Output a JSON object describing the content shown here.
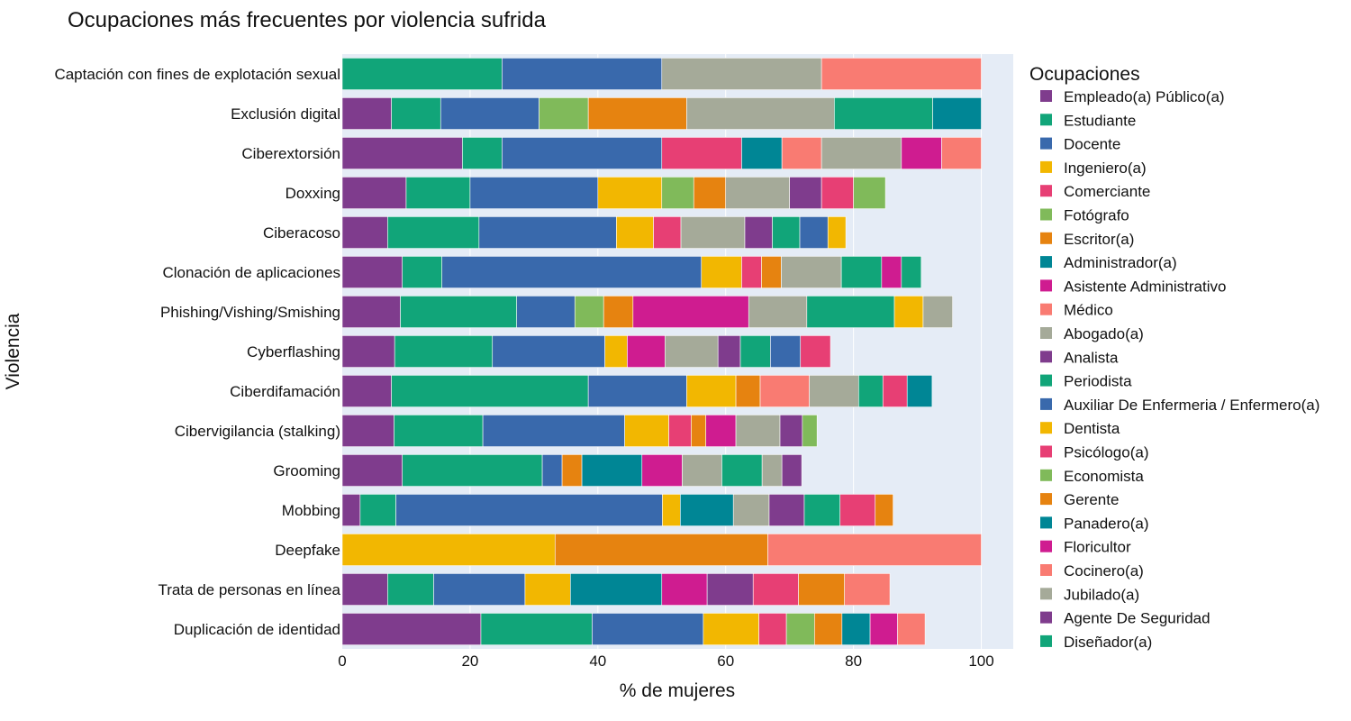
{
  "chart_data": {
    "type": "bar",
    "orientation": "horizontal",
    "stacked": true,
    "title": "Ocupaciones más frecuentes por violencia sufrida",
    "xlabel": "% de mujeres",
    "ylabel": "Violencia",
    "xlim": [
      0,
      105
    ],
    "xticks": [
      0,
      20,
      40,
      60,
      80,
      100
    ],
    "grid": true,
    "legend_title": "Ocupaciones",
    "legend_position": "right",
    "categories": [
      "Captación con fines de explotación sexual",
      "Exclusión digital",
      "Ciberextorsión",
      "Doxxing",
      "Ciberacoso",
      "Clonación de aplicaciones",
      "Phishing/Vishing/Smishing",
      "Cyberflashing",
      "Ciberdifamación",
      "Cibervigilancia (stalking)",
      "Grooming",
      "Mobbing",
      "Deepfake",
      "Trata de personas en línea",
      "Duplicación de identidad"
    ],
    "legend_entries": [
      {
        "name": "Empleado(a) Público(a)",
        "color": "#7f3c8d"
      },
      {
        "name": "Estudiante",
        "color": "#11a579"
      },
      {
        "name": "Docente",
        "color": "#3969ac"
      },
      {
        "name": "Ingeniero(a)",
        "color": "#f2b701"
      },
      {
        "name": "Comerciante",
        "color": "#e73f74"
      },
      {
        "name": "Fotógrafo",
        "color": "#80ba5a"
      },
      {
        "name": "Escritor(a)",
        "color": "#e68310"
      },
      {
        "name": "Administrador(a)",
        "color": "#008695"
      },
      {
        "name": "Asistente Administrativo",
        "color": "#cf1c90"
      },
      {
        "name": "Médico",
        "color": "#f97b72"
      },
      {
        "name": "Abogado(a)",
        "color": "#a5aa99"
      },
      {
        "name": "Analista",
        "color": "#7f3c8d"
      },
      {
        "name": "Periodista",
        "color": "#11a579"
      },
      {
        "name": "Auxiliar De Enfermeria / Enfermero(a)",
        "color": "#3969ac"
      },
      {
        "name": "Dentista",
        "color": "#f2b701"
      },
      {
        "name": "Psicólogo(a)",
        "color": "#e73f74"
      },
      {
        "name": "Economista",
        "color": "#80ba5a"
      },
      {
        "name": "Gerente",
        "color": "#e68310"
      },
      {
        "name": "Panadero(a)",
        "color": "#008695"
      },
      {
        "name": "Floricultor",
        "color": "#cf1c90"
      },
      {
        "name": "Cocinero(a)",
        "color": "#f97b72"
      },
      {
        "name": "Jubilado(a)",
        "color": "#a5aa99"
      },
      {
        "name": "Agente De Seguridad",
        "color": "#7f3c8d"
      },
      {
        "name": "Diseñador(a)",
        "color": "#11a579"
      }
    ],
    "bars": [
      {
        "category": "Captación con fines de explotación sexual",
        "segments": [
          {
            "color": "#11a579",
            "value": 25.0
          },
          {
            "color": "#3969ac",
            "value": 25.0
          },
          {
            "color": "#a5aa99",
            "value": 25.0
          },
          {
            "color": "#f97b72",
            "value": 25.0
          }
        ]
      },
      {
        "category": "Exclusión digital",
        "segments": [
          {
            "color": "#7f3c8d",
            "value": 7.7
          },
          {
            "color": "#11a579",
            "value": 7.7
          },
          {
            "color": "#3969ac",
            "value": 15.4
          },
          {
            "color": "#80ba5a",
            "value": 7.7
          },
          {
            "color": "#e68310",
            "value": 15.4
          },
          {
            "color": "#a5aa99",
            "value": 23.1
          },
          {
            "color": "#11a579",
            "value": 15.4
          },
          {
            "color": "#008695",
            "value": 7.6
          }
        ]
      },
      {
        "category": "Ciberextorsión",
        "segments": [
          {
            "color": "#7f3c8d",
            "value": 18.8
          },
          {
            "color": "#11a579",
            "value": 6.2
          },
          {
            "color": "#3969ac",
            "value": 25.0
          },
          {
            "color": "#e73f74",
            "value": 12.5
          },
          {
            "color": "#008695",
            "value": 6.3
          },
          {
            "color": "#f97b72",
            "value": 6.2
          },
          {
            "color": "#a5aa99",
            "value": 12.5
          },
          {
            "color": "#cf1c90",
            "value": 6.3
          },
          {
            "color": "#f97b72",
            "value": 6.2
          }
        ]
      },
      {
        "category": "Doxxing",
        "segments": [
          {
            "color": "#7f3c8d",
            "value": 10.0
          },
          {
            "color": "#11a579",
            "value": 10.0
          },
          {
            "color": "#3969ac",
            "value": 20.0
          },
          {
            "color": "#f2b701",
            "value": 10.0
          },
          {
            "color": "#80ba5a",
            "value": 5.0
          },
          {
            "color": "#e68310",
            "value": 5.0
          },
          {
            "color": "#a5aa99",
            "value": 10.0
          },
          {
            "color": "#7f3c8d",
            "value": 5.0
          },
          {
            "color": "#e73f74",
            "value": 5.0
          },
          {
            "color": "#80ba5a",
            "value": 5.0
          }
        ]
      },
      {
        "category": "Ciberacoso",
        "segments": [
          {
            "color": "#7f3c8d",
            "value": 7.1
          },
          {
            "color": "#11a579",
            "value": 14.3
          },
          {
            "color": "#3969ac",
            "value": 21.5
          },
          {
            "color": "#f2b701",
            "value": 5.8
          },
          {
            "color": "#e73f74",
            "value": 4.3
          },
          {
            "color": "#a5aa99",
            "value": 10.0
          },
          {
            "color": "#7f3c8d",
            "value": 4.3
          },
          {
            "color": "#11a579",
            "value": 4.3
          },
          {
            "color": "#3969ac",
            "value": 4.4
          },
          {
            "color": "#f2b701",
            "value": 2.8
          }
        ]
      },
      {
        "category": "Clonación de aplicaciones",
        "segments": [
          {
            "color": "#7f3c8d",
            "value": 9.4
          },
          {
            "color": "#11a579",
            "value": 6.2
          },
          {
            "color": "#3969ac",
            "value": 40.6
          },
          {
            "color": "#f2b701",
            "value": 6.3
          },
          {
            "color": "#e73f74",
            "value": 3.1
          },
          {
            "color": "#e68310",
            "value": 3.1
          },
          {
            "color": "#a5aa99",
            "value": 9.4
          },
          {
            "color": "#11a579",
            "value": 6.3
          },
          {
            "color": "#cf1c90",
            "value": 3.1
          },
          {
            "color": "#11a579",
            "value": 3.1
          }
        ]
      },
      {
        "category": "Phishing/Vishing/Smishing",
        "segments": [
          {
            "color": "#7f3c8d",
            "value": 9.1
          },
          {
            "color": "#11a579",
            "value": 18.2
          },
          {
            "color": "#3969ac",
            "value": 9.1
          },
          {
            "color": "#80ba5a",
            "value": 4.5
          },
          {
            "color": "#e68310",
            "value": 4.6
          },
          {
            "color": "#cf1c90",
            "value": 18.1
          },
          {
            "color": "#a5aa99",
            "value": 9.1
          },
          {
            "color": "#11a579",
            "value": 13.7
          },
          {
            "color": "#f2b701",
            "value": 4.5
          },
          {
            "color": "#a5aa99",
            "value": 4.6
          }
        ]
      },
      {
        "category": "Cyberflashing",
        "segments": [
          {
            "color": "#7f3c8d",
            "value": 8.2
          },
          {
            "color": "#11a579",
            "value": 15.3
          },
          {
            "color": "#3969ac",
            "value": 17.6
          },
          {
            "color": "#f2b701",
            "value": 3.5
          },
          {
            "color": "#cf1c90",
            "value": 5.9
          },
          {
            "color": "#a5aa99",
            "value": 8.3
          },
          {
            "color": "#7f3c8d",
            "value": 3.5
          },
          {
            "color": "#11a579",
            "value": 4.7
          },
          {
            "color": "#3969ac",
            "value": 4.7
          },
          {
            "color": "#e73f74",
            "value": 4.7
          }
        ]
      },
      {
        "category": "Ciberdifamación",
        "segments": [
          {
            "color": "#7f3c8d",
            "value": 7.7
          },
          {
            "color": "#11a579",
            "value": 30.8
          },
          {
            "color": "#3969ac",
            "value": 15.4
          },
          {
            "color": "#f2b701",
            "value": 7.7
          },
          {
            "color": "#e68310",
            "value": 3.8
          },
          {
            "color": "#f97b72",
            "value": 7.7
          },
          {
            "color": "#a5aa99",
            "value": 7.7
          },
          {
            "color": "#11a579",
            "value": 3.8
          },
          {
            "color": "#e73f74",
            "value": 3.8
          },
          {
            "color": "#008695",
            "value": 3.9
          }
        ]
      },
      {
        "category": "Cibervigilancia (stalking)",
        "segments": [
          {
            "color": "#7f3c8d",
            "value": 8.1
          },
          {
            "color": "#11a579",
            "value": 13.9
          },
          {
            "color": "#3969ac",
            "value": 22.2
          },
          {
            "color": "#f2b701",
            "value": 6.9
          },
          {
            "color": "#e73f74",
            "value": 3.5
          },
          {
            "color": "#e68310",
            "value": 2.3
          },
          {
            "color": "#cf1c90",
            "value": 4.7
          },
          {
            "color": "#a5aa99",
            "value": 6.9
          },
          {
            "color": "#7f3c8d",
            "value": 3.5
          },
          {
            "color": "#80ba5a",
            "value": 2.3
          }
        ]
      },
      {
        "category": "Grooming",
        "segments": [
          {
            "color": "#7f3c8d",
            "value": 9.4
          },
          {
            "color": "#11a579",
            "value": 21.9
          },
          {
            "color": "#3969ac",
            "value": 3.1
          },
          {
            "color": "#e68310",
            "value": 3.1
          },
          {
            "color": "#008695",
            "value": 9.4
          },
          {
            "color": "#cf1c90",
            "value": 6.3
          },
          {
            "color": "#a5aa99",
            "value": 6.2
          },
          {
            "color": "#11a579",
            "value": 6.3
          },
          {
            "color": "#a5aa99",
            "value": 3.1
          },
          {
            "color": "#7f3c8d",
            "value": 3.1
          }
        ]
      },
      {
        "category": "Mobbing",
        "segments": [
          {
            "color": "#7f3c8d",
            "value": 2.8
          },
          {
            "color": "#11a579",
            "value": 5.6
          },
          {
            "color": "#3969ac",
            "value": 41.7
          },
          {
            "color": "#f2b701",
            "value": 2.8
          },
          {
            "color": "#008695",
            "value": 8.3
          },
          {
            "color": "#a5aa99",
            "value": 5.6
          },
          {
            "color": "#7f3c8d",
            "value": 5.5
          },
          {
            "color": "#11a579",
            "value": 5.6
          },
          {
            "color": "#e73f74",
            "value": 5.5
          },
          {
            "color": "#e68310",
            "value": 2.8
          }
        ]
      },
      {
        "category": "Deepfake",
        "segments": [
          {
            "color": "#f2b701",
            "value": 33.3
          },
          {
            "color": "#e68310",
            "value": 33.3
          },
          {
            "color": "#f97b72",
            "value": 33.4
          }
        ]
      },
      {
        "category": "Trata de personas en línea",
        "segments": [
          {
            "color": "#7f3c8d",
            "value": 7.1
          },
          {
            "color": "#11a579",
            "value": 7.2
          },
          {
            "color": "#3969ac",
            "value": 14.3
          },
          {
            "color": "#f2b701",
            "value": 7.1
          },
          {
            "color": "#008695",
            "value": 14.3
          },
          {
            "color": "#cf1c90",
            "value": 7.1
          },
          {
            "color": "#7f3c8d",
            "value": 7.2
          },
          {
            "color": "#e73f74",
            "value": 7.1
          },
          {
            "color": "#e68310",
            "value": 7.2
          },
          {
            "color": "#f97b72",
            "value": 7.1
          }
        ]
      },
      {
        "category": "Duplicación de identidad",
        "segments": [
          {
            "color": "#7f3c8d",
            "value": 21.7
          },
          {
            "color": "#11a579",
            "value": 17.4
          },
          {
            "color": "#3969ac",
            "value": 17.4
          },
          {
            "color": "#f2b701",
            "value": 8.7
          },
          {
            "color": "#e73f74",
            "value": 4.3
          },
          {
            "color": "#80ba5a",
            "value": 4.4
          },
          {
            "color": "#e68310",
            "value": 4.3
          },
          {
            "color": "#008695",
            "value": 4.4
          },
          {
            "color": "#cf1c90",
            "value": 4.3
          },
          {
            "color": "#f97b72",
            "value": 4.3
          }
        ]
      }
    ]
  }
}
